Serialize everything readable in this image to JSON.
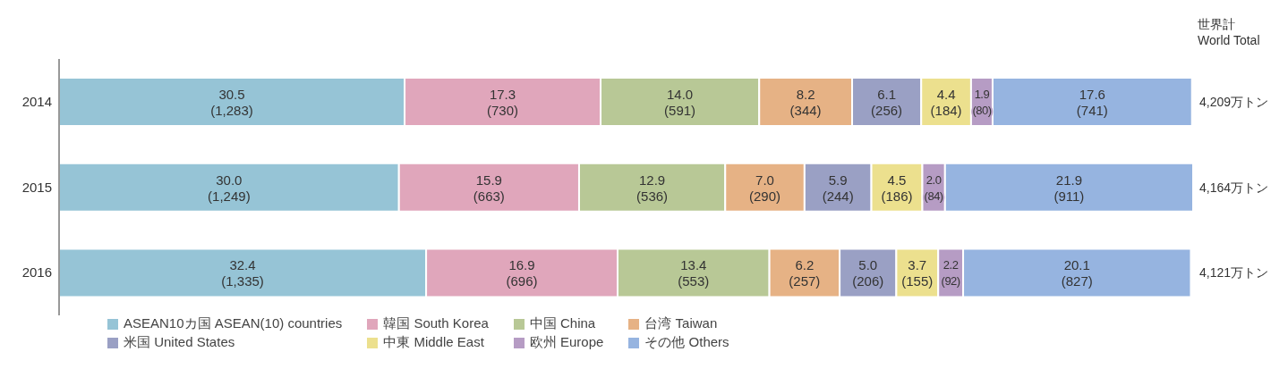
{
  "chart_data": {
    "type": "bar",
    "orientation": "horizontal",
    "stacked": true,
    "categories": [
      "2014",
      "2015",
      "2016"
    ],
    "series": [
      {
        "name": "ASEAN10カ国 ASEAN(10) countries",
        "color": "#96c4d6",
        "values": [
          30.5,
          30.0,
          32.4
        ],
        "value_labels": [
          "30.5\n(1,283)",
          "30.0\n(1,249)",
          "32.4\n(1,335)"
        ]
      },
      {
        "name": "韓国 South Korea",
        "color": "#e0a6bb",
        "values": [
          17.3,
          15.9,
          16.9
        ],
        "value_labels": [
          "17.3\n(730)",
          "15.9\n(663)",
          "16.9\n(696)"
        ]
      },
      {
        "name": "中国 China",
        "color": "#b8c896",
        "values": [
          14.0,
          12.9,
          13.4
        ],
        "value_labels": [
          "14.0\n(591)",
          "12.9\n(536)",
          "13.4\n(553)"
        ]
      },
      {
        "name": "台湾 Taiwan",
        "color": "#e6b285",
        "values": [
          8.2,
          7.0,
          6.2
        ],
        "value_labels": [
          "8.2\n(344)",
          "7.0\n(290)",
          "6.2\n(257)"
        ]
      },
      {
        "name": "米国 United States",
        "color": "#9aa0c4",
        "values": [
          6.1,
          5.9,
          5.0
        ],
        "value_labels": [
          "6.1\n(256)",
          "5.9\n(244)",
          "5.0\n(206)"
        ]
      },
      {
        "name": "中東 Middle East",
        "color": "#ece08e",
        "values": [
          4.4,
          4.5,
          3.7
        ],
        "value_labels": [
          "4.4\n(184)",
          "4.5\n(186)",
          "3.7\n(155)"
        ]
      },
      {
        "name": "欧州 Europe",
        "color": "#b69cc4",
        "values": [
          1.9,
          2.0,
          2.2
        ],
        "value_labels": [
          "1.9\n(80)",
          "2.0\n(84)",
          "2.2\n(92)"
        ]
      },
      {
        "name": "その他 Others",
        "color": "#96b4e0",
        "values": [
          17.6,
          21.9,
          20.1
        ],
        "value_labels": [
          "17.6\n(741)",
          "21.9\n(911)",
          "20.1\n(827)"
        ]
      }
    ],
    "annotations": [
      "世界計\nWorld Total",
      "4,209万トン",
      "4,164万トン",
      "4,121万トン"
    ],
    "tick_labels": "y",
    "legend": "bottom",
    "grid": false
  }
}
